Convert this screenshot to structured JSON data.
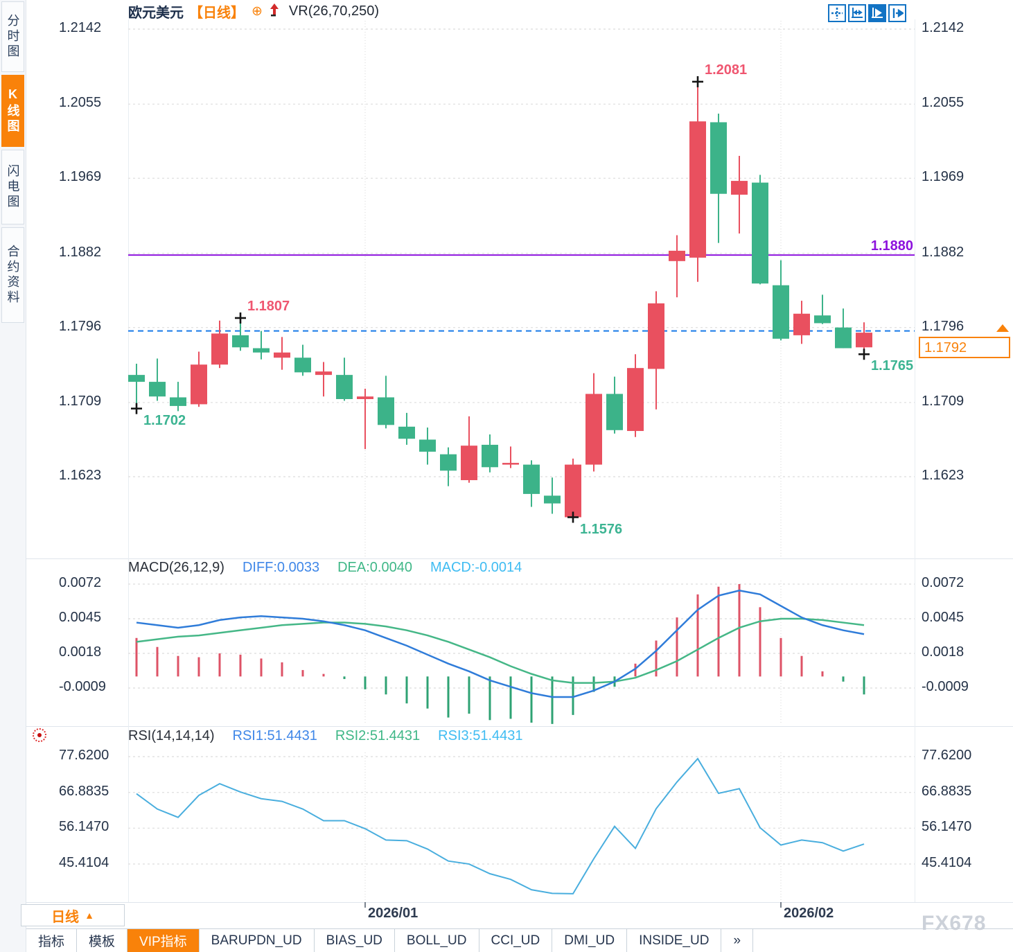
{
  "title": {
    "symbol": "欧元美元",
    "period_tag": "【日线】",
    "compass_icon": "⊕",
    "vr_label": "VR(26,70,250)"
  },
  "sidebar": {
    "items": [
      {
        "label": "分时图",
        "name": "sidebar-item-time-chart",
        "active": false
      },
      {
        "label": "K线图",
        "name": "sidebar-item-kline-chart",
        "active": true
      },
      {
        "label": "闪电图",
        "name": "sidebar-item-lightning-chart",
        "active": false
      },
      {
        "label": "合约资料",
        "name": "sidebar-item-contract-info",
        "active": false
      }
    ]
  },
  "macd_panel": {
    "title": "MACD(26,12,9)",
    "diff_label": "DIFF:0.0033",
    "dea_label": "DEA:0.0040",
    "macd_label": "MACD:-0.0014"
  },
  "rsi_panel": {
    "title": "RSI(14,14,14)",
    "rsi1_label": "RSI1:51.4431",
    "rsi2_label": "RSI2:51.4431",
    "rsi3_label": "RSI3:51.4431"
  },
  "time_axis": {
    "period_label": "日线",
    "period_arrow": "▲"
  },
  "bottom_tabs": {
    "items": [
      {
        "label": "指标",
        "name": "tab-indicators",
        "active": false
      },
      {
        "label": "模板",
        "name": "tab-templates",
        "active": false
      },
      {
        "label": "VIP指标",
        "name": "tab-vip-indicators",
        "active": true
      },
      {
        "label": "BARUPDN_UD",
        "name": "tab-barupdn-ud",
        "active": false
      },
      {
        "label": "BIAS_UD",
        "name": "tab-bias-ud",
        "active": false
      },
      {
        "label": "BOLL_UD",
        "name": "tab-boll-ud",
        "active": false
      },
      {
        "label": "CCI_UD",
        "name": "tab-cci-ud",
        "active": false
      },
      {
        "label": "DMI_UD",
        "name": "tab-dmi-ud",
        "active": false
      },
      {
        "label": "INSIDE_UD",
        "name": "tab-inside-ud",
        "active": false
      },
      {
        "label": "»",
        "name": "tab-more",
        "active": false
      }
    ]
  },
  "watermark": "FX678",
  "price_box": {
    "value": "1.1792"
  },
  "hline_label": "1.1880",
  "chart_data": {
    "type": "candlestick",
    "symbol": "欧元美元",
    "period": "日线",
    "up_color": "#e9505f",
    "down_color": "#3cb389",
    "y_ticks": [
      "1.2142",
      "1.2055",
      "1.1969",
      "1.1882",
      "1.1796",
      "1.1709",
      "1.1623"
    ],
    "hline": 1.188,
    "price_line": 1.1792,
    "candles": [
      [
        1.1741,
        1.1754,
        1.1702,
        1.1733
      ],
      [
        1.1733,
        1.176,
        1.1711,
        1.1716
      ],
      [
        1.1715,
        1.1733,
        1.1699,
        1.1705
      ],
      [
        1.1707,
        1.1768,
        1.1704,
        1.1753
      ],
      [
        1.1753,
        1.1804,
        1.1749,
        1.1789
      ],
      [
        1.1787,
        1.1807,
        1.1769,
        1.1773
      ],
      [
        1.1772,
        1.1792,
        1.1759,
        1.1767
      ],
      [
        1.1761,
        1.1785,
        1.1747,
        1.1767
      ],
      [
        1.1761,
        1.1776,
        1.174,
        1.1744
      ],
      [
        1.1741,
        1.1756,
        1.1716,
        1.1745
      ],
      [
        1.1741,
        1.1761,
        1.1711,
        1.1713
      ],
      [
        1.1713,
        1.1725,
        1.1655,
        1.1716
      ],
      [
        1.1715,
        1.174,
        1.1679,
        1.1683
      ],
      [
        1.1681,
        1.1697,
        1.166,
        1.1667
      ],
      [
        1.1666,
        1.168,
        1.1637,
        1.1652
      ],
      [
        1.1649,
        1.1657,
        1.1612,
        1.163
      ],
      [
        1.1619,
        1.1693,
        1.1616,
        1.1659
      ],
      [
        1.166,
        1.1672,
        1.1628,
        1.1634
      ],
      [
        1.1637,
        1.1658,
        1.1633,
        1.1639
      ],
      [
        1.1637,
        1.1642,
        1.1588,
        1.1603
      ],
      [
        1.1601,
        1.1622,
        1.158,
        1.1592
      ],
      [
        1.1576,
        1.1644,
        1.1576,
        1.1637
      ],
      [
        1.1637,
        1.1743,
        1.1629,
        1.1719
      ],
      [
        1.1719,
        1.1739,
        1.1673,
        1.1677
      ],
      [
        1.1676,
        1.1765,
        1.1669,
        1.1749
      ],
      [
        1.1748,
        1.1838,
        1.1701,
        1.1824
      ],
      [
        1.1873,
        1.1903,
        1.1831,
        1.1885
      ],
      [
        1.1877,
        1.2081,
        1.1849,
        1.2035
      ],
      [
        1.2034,
        1.2044,
        1.1894,
        1.1951
      ],
      [
        1.195,
        1.1995,
        1.1905,
        1.1966
      ],
      [
        1.1964,
        1.1973,
        1.1846,
        1.1847
      ],
      [
        1.1845,
        1.1874,
        1.1781,
        1.1783
      ],
      [
        1.1787,
        1.1827,
        1.1777,
        1.1812
      ],
      [
        1.181,
        1.1834,
        1.18,
        1.1801
      ],
      [
        1.1796,
        1.1818,
        1.1772,
        1.1772
      ],
      [
        1.1773,
        1.1802,
        1.1765,
        1.179
      ]
    ],
    "annotations": [
      {
        "index": 27,
        "price": 1.2081,
        "text": "1.2081",
        "side": "high"
      },
      {
        "index": 5,
        "price": 1.1807,
        "text": "1.1807",
        "side": "high"
      },
      {
        "index": 0,
        "price": 1.1702,
        "text": "1.1702",
        "side": "low"
      },
      {
        "index": 21,
        "price": 1.1576,
        "text": "1.1576",
        "side": "low"
      },
      {
        "index": 35,
        "price": 1.1765,
        "text": "1.1765",
        "side": "low"
      }
    ],
    "x_axis": [
      {
        "label": "2026/01",
        "index": 11
      },
      {
        "label": "2026/02",
        "index": 31
      }
    ],
    "macd": {
      "y_ticks": [
        "0.0072",
        "0.0045",
        "0.0018",
        "-0.0009"
      ],
      "hist": [
        0.003,
        0.0023,
        0.0016,
        0.0015,
        0.0018,
        0.0017,
        0.0014,
        0.0011,
        0.0005,
        0.0002,
        -0.0002,
        -0.001,
        -0.0014,
        -0.0021,
        -0.0025,
        -0.0032,
        -0.0029,
        -0.0034,
        -0.0033,
        -0.0036,
        -0.0037,
        -0.003,
        -0.0012,
        -0.0008,
        0.001,
        0.0028,
        0.0046,
        0.0064,
        0.007,
        0.0072,
        0.0054,
        0.003,
        0.0016,
        0.0004,
        -0.0004,
        -0.0014
      ],
      "diff": [
        0.0042,
        0.004,
        0.0038,
        0.004,
        0.0044,
        0.0046,
        0.0047,
        0.0046,
        0.0045,
        0.0043,
        0.004,
        0.0036,
        0.003,
        0.0024,
        0.0017,
        0.001,
        0.0004,
        -0.0003,
        -0.0008,
        -0.0013,
        -0.0016,
        -0.0016,
        -0.0011,
        -0.0004,
        0.0006,
        0.002,
        0.0036,
        0.0052,
        0.0063,
        0.0067,
        0.0064,
        0.0055,
        0.0046,
        0.004,
        0.0036,
        0.0033
      ],
      "dea": [
        0.0027,
        0.0029,
        0.0031,
        0.0032,
        0.0034,
        0.0036,
        0.0038,
        0.004,
        0.0041,
        0.0042,
        0.0042,
        0.0041,
        0.0039,
        0.0036,
        0.0032,
        0.0027,
        0.0021,
        0.0015,
        0.0008,
        0.0002,
        -0.0003,
        -0.0005,
        -0.0005,
        -0.0004,
        -0.0001,
        0.0005,
        0.0012,
        0.0021,
        0.003,
        0.0038,
        0.0043,
        0.0045,
        0.0045,
        0.0044,
        0.0042,
        0.004
      ]
    },
    "rsi": {
      "y_ticks": [
        "77.6200",
        "66.8835",
        "56.1470",
        "45.4104"
      ],
      "values": [
        66.5,
        61.9,
        59.4,
        66.0,
        69.5,
        67.0,
        65.0,
        64.2,
        61.9,
        58.4,
        58.4,
        56.0,
        52.6,
        52.4,
        49.9,
        46.3,
        45.4,
        42.5,
        40.8,
        37.7,
        36.6,
        36.5,
        47.0,
        56.7,
        50.1,
        62.0,
        70.0,
        77.0,
        66.6,
        68.0,
        56.3,
        51.1,
        52.6,
        51.8,
        49.3,
        51.4
      ]
    },
    "colors": {
      "hist_up": "#de5266",
      "hist_down": "#2ea273",
      "diff_line": "#2f7cd9",
      "dea_line": "#45b787",
      "rsi_line": "#49aede",
      "hline": "#8d12dd",
      "price_line": "#1779e8",
      "annot_high": "#ef5670",
      "annot_low": "#3cb492"
    }
  }
}
